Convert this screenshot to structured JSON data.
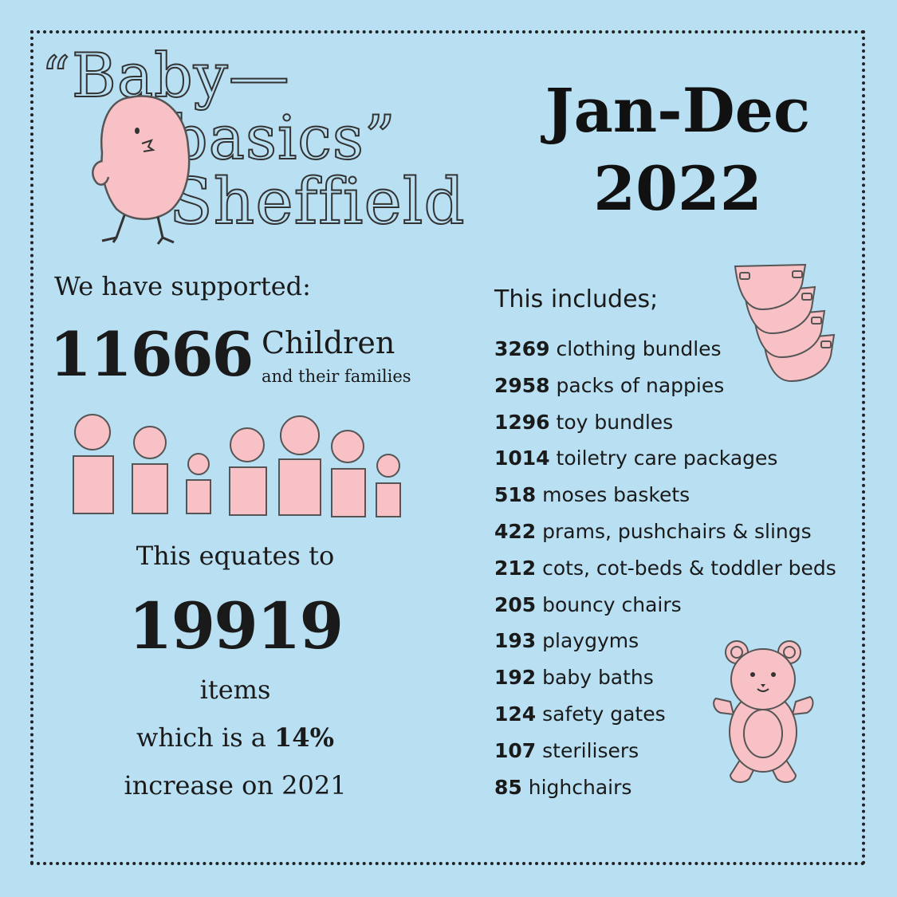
{
  "logo": {
    "open_quote": "“",
    "line1": "Baby—",
    "line2": "basics”",
    "line3": "Sheffield",
    "mascot_icon": "pink-chick-icon"
  },
  "period": {
    "line1": "Jan-Dec",
    "line2": "2022"
  },
  "supported": {
    "heading": "We have supported:",
    "number": "11666",
    "label": "Children",
    "sublabel": "and their families",
    "people_icon": "people-figures-icon"
  },
  "equates": {
    "heading": "This equates to",
    "number": "19919",
    "label": "items",
    "line_prefix": "which is a ",
    "percent": "14%",
    "line_end": "increase on 2021"
  },
  "includes": {
    "heading": "This includes;",
    "items": [
      {
        "count": "3269",
        "label": "clothing bundles"
      },
      {
        "count": "2958",
        "label": "packs of nappies"
      },
      {
        "count": "1296",
        "label": "toy bundles"
      },
      {
        "count": "1014",
        "label": "toiletry care packages"
      },
      {
        "count": "518",
        "label": "moses baskets"
      },
      {
        "count": "422",
        "label": "prams, pushchairs & slings"
      },
      {
        "count": "212",
        "label": "cots, cot-beds & toddler beds"
      },
      {
        "count": "205",
        "label": "bouncy chairs"
      },
      {
        "count": "193",
        "label": "playgyms"
      },
      {
        "count": "192",
        "label": "baby baths"
      },
      {
        "count": "124",
        "label": "safety gates"
      },
      {
        "count": "107",
        "label": "sterilisers"
      },
      {
        "count": "85",
        "label": "highchairs"
      }
    ],
    "nappy_icon": "nappy-stack-icon",
    "bear_icon": "teddy-bear-icon"
  },
  "colors": {
    "background": "#b8dff2",
    "pink": "#f7c1c6",
    "outline": "#555555",
    "border": "#222222"
  }
}
